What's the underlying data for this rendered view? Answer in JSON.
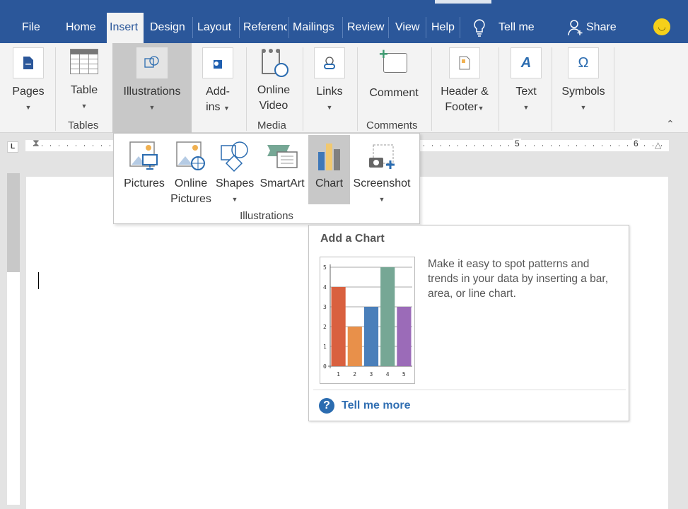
{
  "tabs": [
    {
      "label": "File"
    },
    {
      "label": "Home"
    },
    {
      "label": "Insert",
      "active": true
    },
    {
      "label": "Design"
    },
    {
      "label": "Layout"
    },
    {
      "label": "References"
    },
    {
      "label": "Mailings"
    },
    {
      "label": "Review"
    },
    {
      "label": "View"
    },
    {
      "label": "Help"
    }
  ],
  "tell_me": "Tell me",
  "share": "Share",
  "ribbon": {
    "pages": "Pages",
    "table": "Table",
    "illustrations": "Illustrations",
    "addins_1": "Add-",
    "addins_2": "ins",
    "online_video_1": "Online",
    "online_video_2": "Video",
    "links": "Links",
    "comment": "Comment",
    "header_1": "Header &",
    "header_2": "Footer",
    "text": "Text",
    "symbols": "Symbols",
    "groups": {
      "tables": "Tables",
      "media": "Media",
      "comments": "Comments"
    }
  },
  "illustrations_menu": {
    "pictures": "Pictures",
    "online_pictures_1": "Online",
    "online_pictures_2": "Pictures",
    "shapes": "Shapes",
    "smartart": "SmartArt",
    "chart": "Chart",
    "screenshot": "Screenshot",
    "group_label": "Illustrations"
  },
  "tooltip": {
    "title": "Add a Chart",
    "description": "Make it easy to spot patterns and trends in your data by inserting a bar, area, or line chart.",
    "tell_me_more": "Tell me more"
  },
  "chart_data": {
    "type": "bar",
    "categories": [
      "1",
      "2",
      "3",
      "4",
      "5"
    ],
    "values": [
      4,
      2,
      3,
      5,
      3
    ],
    "colors": [
      "#d9603f",
      "#e8904a",
      "#4a7fba",
      "#76a795",
      "#9b6bb8"
    ],
    "ylim": [
      0,
      5
    ],
    "yticks": [
      "0",
      "1",
      "2",
      "3",
      "4",
      "5"
    ],
    "grid": true
  },
  "colors": {
    "accent": "#2b579a",
    "selected": "#c8c8c8"
  }
}
